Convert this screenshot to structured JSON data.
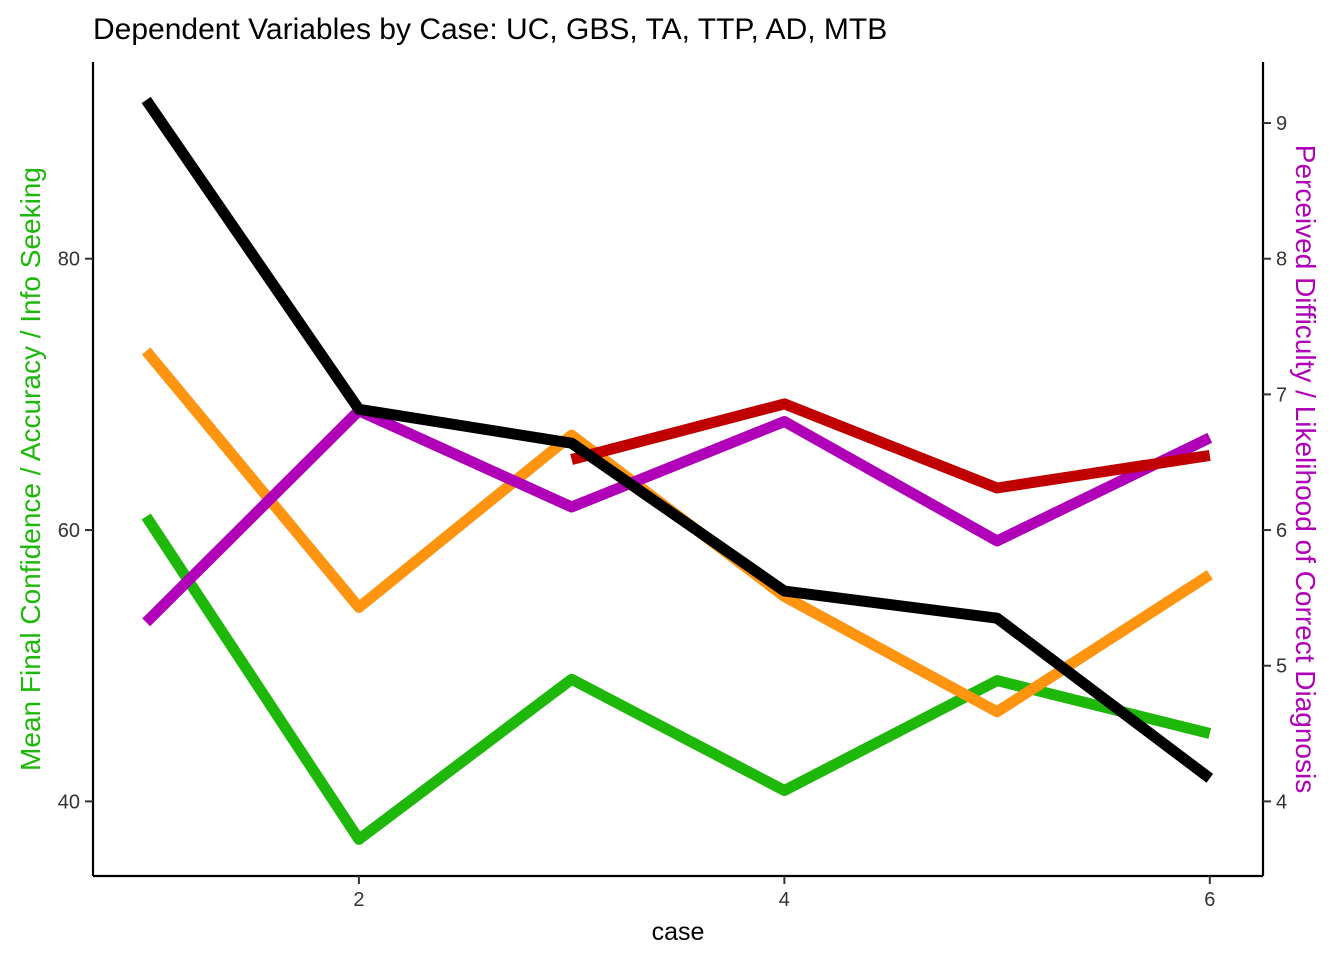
{
  "chart_data": {
    "type": "line",
    "title": "Dependent Variables by Case: UC, GBS, TA, TTP, AD, MTB",
    "xlabel": "case",
    "ylabel_left": "Mean Final Confidence / Accuracy / Info Seeking",
    "ylabel_right": "Perceived Difficulty / Likelihood of Correct Diagnosis",
    "ylabel_left_color": "#1DB80A",
    "ylabel_right_color": "#B000B8",
    "xlim": [
      0.75,
      6.25
    ],
    "ylim_left": [
      34.5,
      94.5
    ],
    "ylim_right": [
      3.45,
      9.45
    ],
    "x_ticks": [
      2,
      4,
      6
    ],
    "y_left_ticks": [
      40,
      60,
      80
    ],
    "y_right_ticks": [
      4,
      5,
      6,
      7,
      8,
      9
    ],
    "grid": false,
    "series": [
      {
        "axis": "left",
        "color": "#1DB80A",
        "x": [
          1,
          2,
          3,
          4,
          5,
          6
        ],
        "values": [
          61,
          37.2,
          49,
          40.8,
          48.9,
          45
        ]
      },
      {
        "axis": "left",
        "color": "#FF9410",
        "x": [
          1,
          2,
          3,
          4,
          5,
          6
        ],
        "values": [
          73.2,
          54.3,
          67,
          55.1,
          46.6,
          56.7
        ]
      },
      {
        "axis": "right",
        "color": "#B000B8",
        "x": [
          1,
          2,
          3,
          4,
          5,
          6
        ],
        "values": [
          5.32,
          6.88,
          6.17,
          6.8,
          5.92,
          6.68
        ]
      },
      {
        "axis": "right",
        "color": "#C00000",
        "x": [
          3,
          4,
          5,
          6
        ],
        "values": [
          6.52,
          6.93,
          6.31,
          6.55
        ]
      },
      {
        "axis": "left",
        "color": "#000000",
        "x": [
          1,
          2,
          3,
          4,
          5,
          6
        ],
        "values": [
          91.7,
          68.9,
          66.4,
          55.5,
          53.5,
          41.7
        ]
      }
    ]
  }
}
